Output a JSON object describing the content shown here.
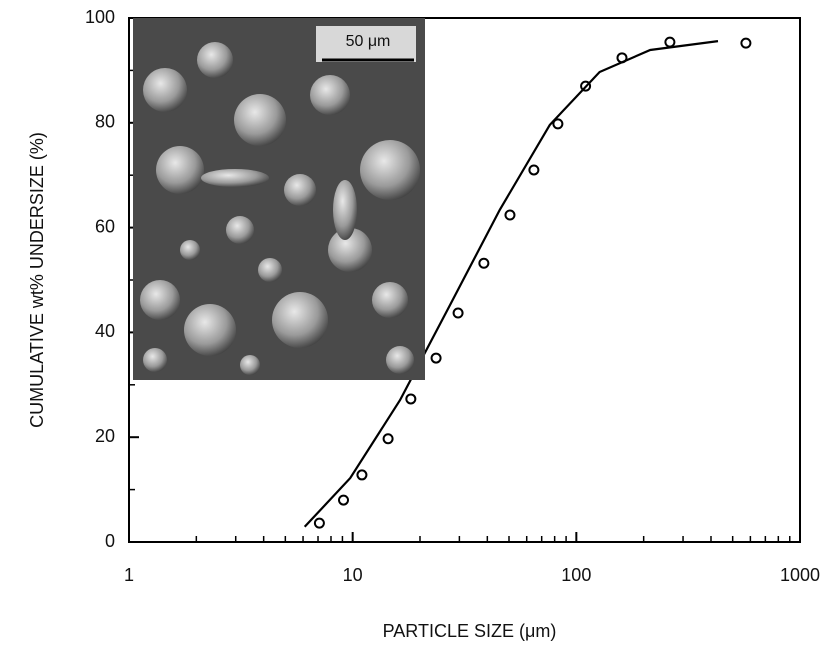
{
  "chart_data": {
    "type": "scatter",
    "xlabel": "PARTICLE SIZE (μm)",
    "ylabel": "CUMULATIVE wt% UNDERSIZE (%)",
    "inset_scale_label": "50 μm",
    "xscale": "log",
    "xlim": [
      1,
      1000
    ],
    "ylim": [
      0,
      100
    ],
    "xticks": [
      1,
      10,
      100,
      1000
    ],
    "yticks": [
      0,
      20,
      40,
      60,
      80,
      100
    ],
    "series": [
      {
        "style": "markers",
        "color": "#000000",
        "x": [
          7.1,
          9.1,
          11.0,
          14.4,
          18.2,
          23.6,
          29.6,
          38.6,
          50.5,
          64.6,
          82.7,
          110,
          160,
          262,
          573
        ],
        "values": [
          3.6,
          8.0,
          12.8,
          19.7,
          27.3,
          35.1,
          43.7,
          53.2,
          62.4,
          71.0,
          79.8,
          87.0,
          92.4,
          95.4,
          95.2
        ]
      },
      {
        "style": "line",
        "color": "#000000",
        "x": [
          6.1,
          9.75,
          16.3,
          27.2,
          45.5,
          76.1,
          127,
          214,
          430
        ],
        "values": [
          2.9,
          12.2,
          27.1,
          45.2,
          63.4,
          79.6,
          89.7,
          93.9,
          95.6
        ]
      }
    ]
  }
}
